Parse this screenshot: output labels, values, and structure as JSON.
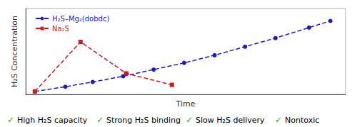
{
  "chart_data": {
    "type": "line",
    "xlabel": "Time",
    "ylabel": "H₂S Concentration",
    "series": [
      {
        "name": "H₂S–Mg₂(dobdc)",
        "color": "#1a1acc",
        "marker": "circle",
        "line_style": "dashed",
        "x": [
          0.03,
          0.13,
          0.22,
          0.32,
          0.42,
          0.52,
          0.62,
          0.72,
          0.82,
          0.93,
          1.0
        ],
        "values": [
          0.03,
          0.08,
          0.13,
          0.19,
          0.26,
          0.33,
          0.41,
          0.5,
          0.59,
          0.7,
          0.77
        ]
      },
      {
        "name": "Na₂S",
        "color": "#cc1a1a",
        "marker": "square",
        "line_style": "dashed",
        "x": [
          0.03,
          0.18,
          0.33,
          0.48
        ],
        "values": [
          0.03,
          0.55,
          0.22,
          0.1
        ]
      }
    ],
    "xlim": [
      0,
      1.05
    ],
    "ylim": [
      0,
      0.9
    ],
    "xticks": [],
    "yticks": [],
    "tick_labels": false,
    "grid": false,
    "legend": "upper left",
    "annotations": [
      [
        {
          "text": "✓",
          "color": "#22aa22"
        },
        {
          "text": "High H₂S capacity"
        }
      ],
      [
        {
          "text": "✓",
          "color": "#22aa22"
        },
        {
          "text": "Strong H₂S binding"
        }
      ],
      [
        {
          "text": "✓",
          "color": "#22aa22"
        },
        {
          "text": "Slow H₂S delivery"
        }
      ],
      [
        {
          "text": "✓",
          "color": "#22aa22"
        },
        {
          "text": "Nontoxic"
        }
      ]
    ]
  }
}
